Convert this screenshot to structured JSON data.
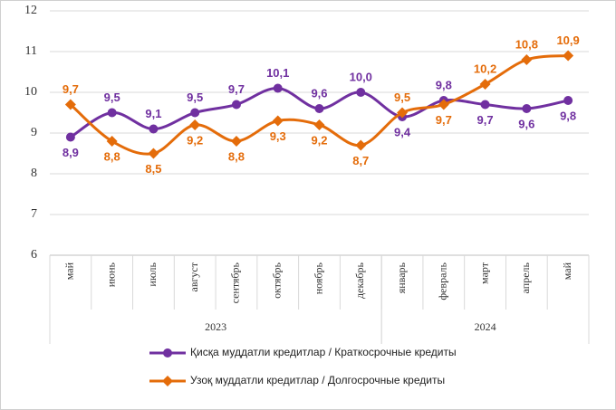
{
  "chart_data": {
    "type": "line",
    "categories": [
      "май",
      "июнь",
      "июль",
      "август",
      "сентябрь",
      "октябрь",
      "ноябрь",
      "декабрь",
      "январь",
      "февраль",
      "март",
      "апрель",
      "май"
    ],
    "groups": [
      {
        "label": "2023",
        "count": 8
      },
      {
        "label": "2024",
        "count": 5
      }
    ],
    "series": [
      {
        "name": "Қисқа муддатли кредитлар  / Краткосрочные кредиты",
        "color": "#7030a0",
        "marker": "circle",
        "values": [
          8.9,
          9.5,
          9.1,
          9.5,
          9.7,
          10.1,
          9.6,
          10.0,
          9.4,
          9.8,
          9.7,
          9.6,
          9.8
        ],
        "value_labels": [
          "8,9",
          "9,5",
          "9,1",
          "9,5",
          "9,7",
          "10,1",
          "9,6",
          "10,0",
          "9,4",
          "9,8",
          "9,7",
          "9,6",
          "9,8"
        ]
      },
      {
        "name": "Узоқ муддатли  кредитлар  / Долгосрочные кредиты",
        "color": "#e46c0a",
        "marker": "diamond",
        "values": [
          9.7,
          8.8,
          8.5,
          9.2,
          8.8,
          9.3,
          9.2,
          8.7,
          9.5,
          9.7,
          10.2,
          10.8,
          10.9
        ],
        "value_labels": [
          "9,7",
          "8,8",
          "8,5",
          "9,2",
          "8,8",
          "9,3",
          "9,2",
          "8,7",
          "9,5",
          "9,7",
          "10,2",
          "10,8",
          "10,9"
        ]
      }
    ],
    "ylim": [
      6,
      12
    ],
    "yticks": [
      6,
      7,
      8,
      9,
      10,
      11,
      12
    ],
    "grid": true
  }
}
